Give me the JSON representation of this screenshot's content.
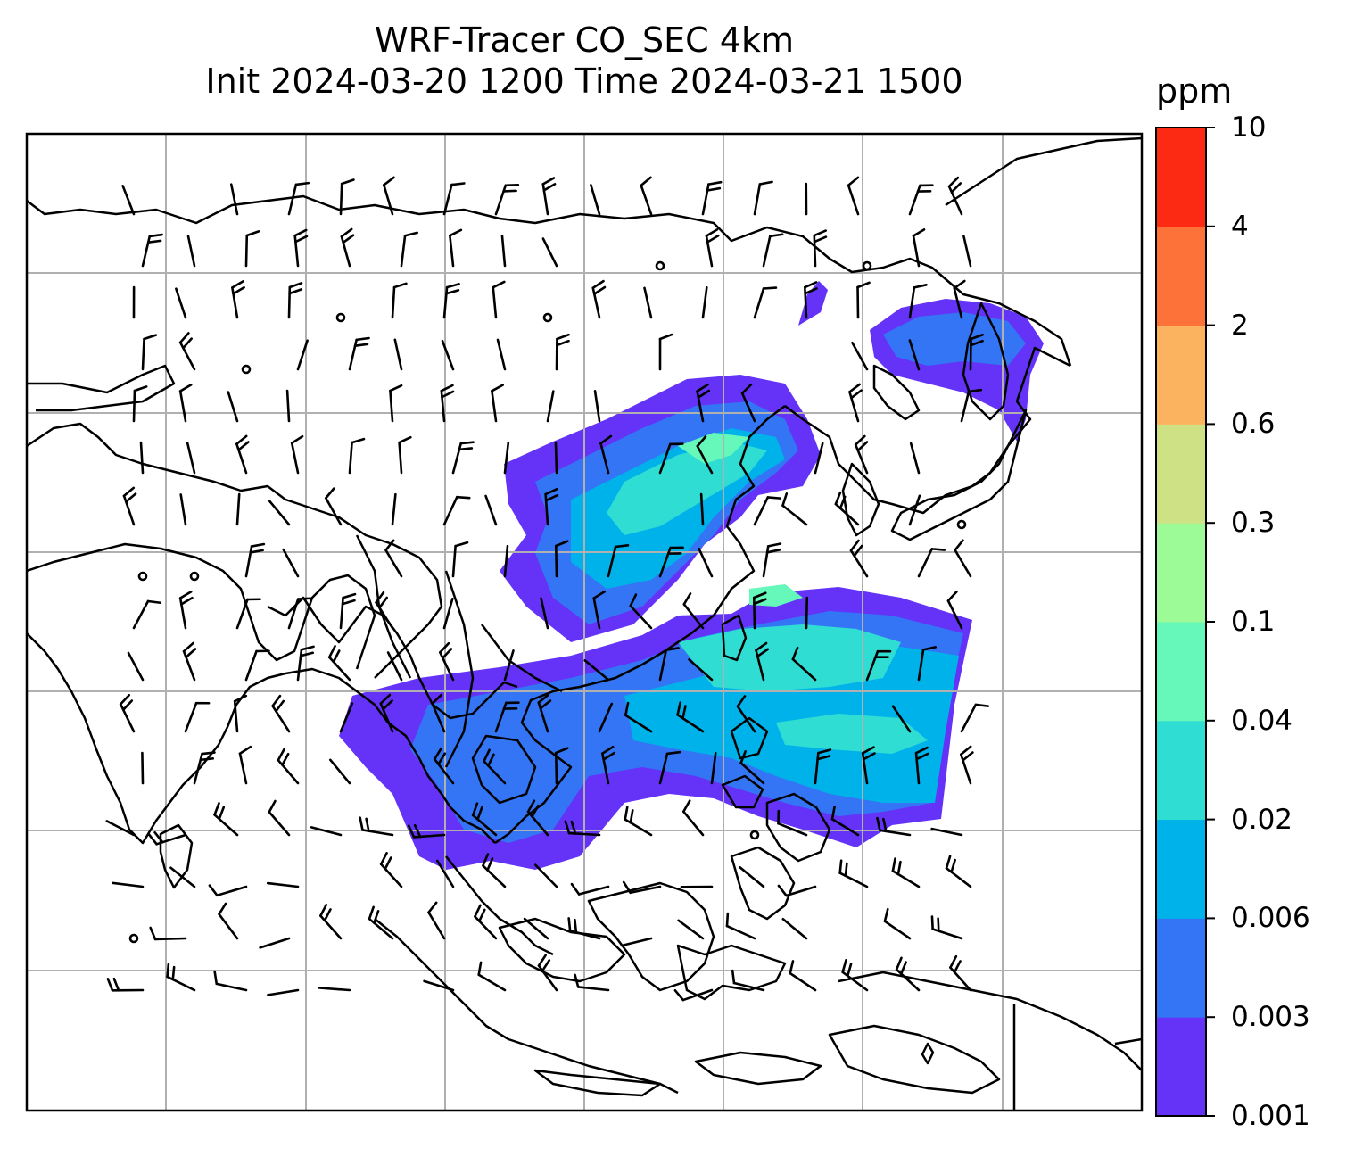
{
  "title": {
    "line1": "WRF-Tracer CO_SEC 4km",
    "line2": "Init 2024-03-20 1200 Time 2024-03-21 1500"
  },
  "colorbar": {
    "unit": "ppm",
    "levels": [
      "0.001",
      "0.003",
      "0.006",
      "0.02",
      "0.04",
      "0.1",
      "0.3",
      "0.6",
      "2",
      "4",
      "10"
    ],
    "colors": [
      "#6433f7",
      "#3375f5",
      "#00b2ea",
      "#2fddd3",
      "#66f8bb",
      "#9cfb96",
      "#cfe185",
      "#fcb360",
      "#fd7239",
      "#fc2a13"
    ]
  },
  "map": {
    "gridlines": true,
    "land_outline_color": "#000000",
    "grid_color": "#b0b0b0",
    "wind_barb_color": "#000000"
  }
}
